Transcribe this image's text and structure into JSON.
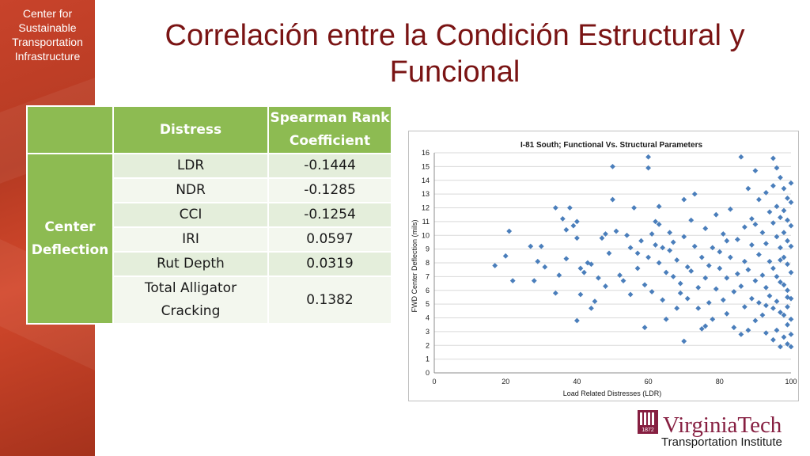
{
  "sidebar": {
    "org_lines": [
      "Center for",
      "Sustainable",
      "Transportation",
      "Infrastructure"
    ]
  },
  "slide": {
    "title_line1": "Correlación entre la Condición Estructural y",
    "title_line2": "Funcional"
  },
  "table": {
    "headers": [
      "Distress",
      "Spearman Rank",
      "Coefficient"
    ],
    "group_label_line1": "Center",
    "group_label_line2": "Deflection",
    "rows": [
      {
        "distress": "LDR",
        "coef": "-0.1444"
      },
      {
        "distress": "NDR",
        "coef": "-0.1285"
      },
      {
        "distress": "CCI",
        "coef": "-0.1254"
      },
      {
        "distress": "IRI",
        "coef": "0.0597"
      },
      {
        "distress": "Rut Depth",
        "coef": "0.0319"
      },
      {
        "distress": "Total Alligator",
        "distress2": "Cracking",
        "coef": "0.1382"
      }
    ]
  },
  "logo": {
    "shield_text": "1872",
    "name": "VirginiaTech",
    "subtitle": "Transportation Institute"
  },
  "colors": {
    "accent_green": "#8dbb52",
    "title_red": "#7a1414",
    "sidebar_red": "#c8432b",
    "marker_blue": "#4a7ebb",
    "logo_maroon": "#861f41"
  },
  "chart_data": {
    "type": "scatter",
    "title": "I-81 South; Functional Vs. Structural Parameters",
    "xlabel": "Load Related Distresses (LDR)",
    "ylabel": "FWD Center Deflection (mils)",
    "xlim": [
      0,
      100
    ],
    "ylim": [
      0,
      16
    ],
    "xticks": [
      "0",
      "20",
      "40",
      "60",
      "80",
      "100"
    ],
    "yticks": [
      "0",
      "1",
      "2",
      "3",
      "4",
      "5",
      "6",
      "7",
      "8",
      "9",
      "10",
      "11",
      "12",
      "13",
      "14",
      "15",
      "16"
    ],
    "grid": "horizontal",
    "marker": "diamond",
    "series": [
      {
        "points": [
          [
            17,
            7.8
          ],
          [
            20,
            8.5
          ],
          [
            21,
            10.3
          ],
          [
            22,
            6.7
          ],
          [
            27,
            9.2
          ],
          [
            28,
            6.7
          ],
          [
            29,
            8.1
          ],
          [
            30,
            9.2
          ],
          [
            31,
            7.7
          ],
          [
            34,
            12
          ],
          [
            34,
            5.8
          ],
          [
            35,
            7.1
          ],
          [
            36,
            11.2
          ],
          [
            37,
            8.3
          ],
          [
            37,
            10.4
          ],
          [
            38,
            12
          ],
          [
            39,
            10.7
          ],
          [
            40,
            9.8
          ],
          [
            40,
            11
          ],
          [
            40,
            3.8
          ],
          [
            41,
            5.7
          ],
          [
            41,
            7.6
          ],
          [
            42,
            7.3
          ],
          [
            43,
            8
          ],
          [
            44,
            4.7
          ],
          [
            44,
            7.9
          ],
          [
            45,
            5.2
          ],
          [
            46,
            6.9
          ],
          [
            47,
            9.8
          ],
          [
            48,
            10.1
          ],
          [
            48,
            6.3
          ],
          [
            49,
            8.7
          ],
          [
            50,
            15
          ],
          [
            50,
            12.6
          ],
          [
            51,
            10.3
          ],
          [
            52,
            7.1
          ],
          [
            53,
            6.7
          ],
          [
            54,
            10
          ],
          [
            55,
            5.7
          ],
          [
            55,
            9.1
          ],
          [
            56,
            12
          ],
          [
            57,
            8.7
          ],
          [
            57,
            7.6
          ],
          [
            58,
            9.6
          ],
          [
            59,
            3.3
          ],
          [
            59,
            6.4
          ],
          [
            60,
            15.7
          ],
          [
            60,
            14.9
          ],
          [
            60,
            8.4
          ],
          [
            61,
            10.1
          ],
          [
            61,
            5.9
          ],
          [
            62,
            11
          ],
          [
            62,
            9.3
          ],
          [
            63,
            10.8
          ],
          [
            63,
            8
          ],
          [
            64,
            5.3
          ],
          [
            64,
            9.1
          ],
          [
            65,
            7.3
          ],
          [
            65,
            3.9
          ],
          [
            66,
            10.2
          ],
          [
            67,
            7
          ],
          [
            67,
            9.5
          ],
          [
            68,
            4.7
          ],
          [
            68,
            8.2
          ],
          [
            69,
            6.5
          ],
          [
            69,
            5.8
          ],
          [
            70,
            12.6
          ],
          [
            70,
            2.3
          ],
          [
            70,
            9.9
          ],
          [
            71,
            5.4
          ],
          [
            72,
            7.4
          ],
          [
            72,
            11.1
          ],
          [
            73,
            13
          ],
          [
            73,
            9.2
          ],
          [
            74,
            6.2
          ],
          [
            74,
            4.7
          ],
          [
            75,
            8.4
          ],
          [
            75,
            3.2
          ],
          [
            76,
            6.9
          ],
          [
            76,
            10.5
          ],
          [
            77,
            5.1
          ],
          [
            77,
            7.8
          ],
          [
            78,
            9.1
          ],
          [
            78,
            3.9
          ],
          [
            79,
            11.5
          ],
          [
            79,
            6.1
          ],
          [
            80,
            7.6
          ],
          [
            80,
            8.8
          ],
          [
            81,
            5.3
          ],
          [
            81,
            10.1
          ],
          [
            82,
            4.3
          ],
          [
            82,
            6.9
          ],
          [
            83,
            11.9
          ],
          [
            83,
            8.4
          ],
          [
            84,
            5.9
          ],
          [
            84,
            3.3
          ],
          [
            85,
            7.2
          ],
          [
            85,
            9.7
          ],
          [
            86,
            15.7
          ],
          [
            86,
            6.3
          ],
          [
            87,
            10.6
          ],
          [
            87,
            4.8
          ],
          [
            87,
            8.1
          ],
          [
            88,
            13.4
          ],
          [
            88,
            3.1
          ],
          [
            88,
            7.5
          ],
          [
            89,
            11.2
          ],
          [
            89,
            5.4
          ],
          [
            89,
            9.3
          ],
          [
            90,
            14.7
          ],
          [
            90,
            6.7
          ],
          [
            90,
            3.8
          ],
          [
            91,
            12.6
          ],
          [
            91,
            8.6
          ],
          [
            91,
            5.1
          ],
          [
            92,
            10.2
          ],
          [
            92,
            7.1
          ],
          [
            92,
            4.2
          ],
          [
            93,
            13.1
          ],
          [
            93,
            9.4
          ],
          [
            93,
            6.2
          ],
          [
            93,
            2.9
          ],
          [
            94,
            11.7
          ],
          [
            94,
            8.1
          ],
          [
            94,
            5.6
          ],
          [
            95,
            15.6
          ],
          [
            95,
            13.6
          ],
          [
            95,
            10.9
          ],
          [
            95,
            7.6
          ],
          [
            95,
            4.7
          ],
          [
            95,
            2.4
          ],
          [
            96,
            14.9
          ],
          [
            96,
            12.1
          ],
          [
            96,
            9.9
          ],
          [
            96,
            7
          ],
          [
            96,
            5.2
          ],
          [
            96,
            3.1
          ],
          [
            97,
            14.2
          ],
          [
            97,
            11.3
          ],
          [
            97,
            9.1
          ],
          [
            97,
            6.6
          ],
          [
            97,
            4.4
          ],
          [
            97,
            1.9
          ],
          [
            98,
            13.4
          ],
          [
            98,
            11.8
          ],
          [
            98,
            10.2
          ],
          [
            98,
            8.4
          ],
          [
            98,
            6.4
          ],
          [
            98,
            4.2
          ],
          [
            98,
            2.6
          ],
          [
            99,
            12.7
          ],
          [
            99,
            11.1
          ],
          [
            99,
            9.6
          ],
          [
            99,
            7.9
          ],
          [
            99,
            6
          ],
          [
            99,
            4.8
          ],
          [
            99,
            3.5
          ],
          [
            99,
            2.1
          ],
          [
            100,
            13.8
          ],
          [
            100,
            12.4
          ],
          [
            100,
            10.7
          ],
          [
            100,
            9.2
          ],
          [
            100,
            7.3
          ],
          [
            100,
            5.4
          ],
          [
            100,
            3.9
          ],
          [
            100,
            2.8
          ],
          [
            100,
            1.9
          ],
          [
            63,
            12.1
          ],
          [
            66,
            8.9
          ],
          [
            71,
            7.7
          ],
          [
            76,
            3.4
          ],
          [
            82,
            9.6
          ],
          [
            86,
            2.8
          ],
          [
            90,
            10.8
          ],
          [
            93,
            4.9
          ],
          [
            97,
            8.2
          ],
          [
            99,
            5.5
          ]
        ]
      }
    ]
  }
}
